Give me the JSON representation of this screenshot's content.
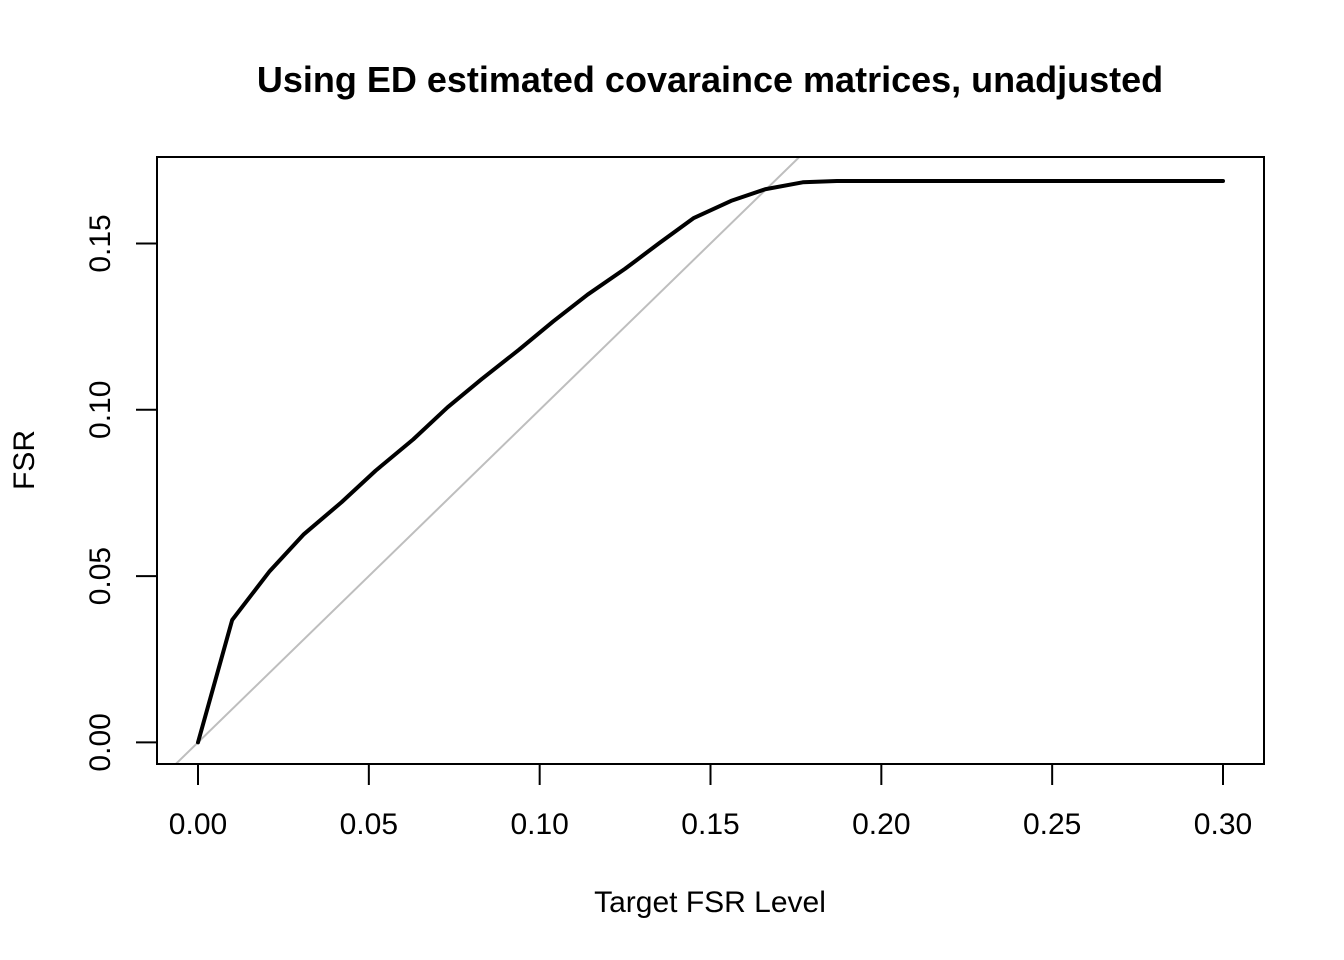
{
  "chart_data": {
    "type": "line",
    "title": "Using ED estimated covaraince matrices, unadjusted",
    "xlabel": "Target FSR Level",
    "ylabel": "FSR",
    "xlim": [
      -0.012,
      0.312
    ],
    "ylim": [
      -0.0065,
      0.176
    ],
    "x_ticks": [
      0.0,
      0.05,
      0.1,
      0.15,
      0.2,
      0.25,
      0.3
    ],
    "x_tick_labels": [
      "0.00",
      "0.05",
      "0.10",
      "0.15",
      "0.20",
      "0.25",
      "0.30"
    ],
    "y_ticks": [
      0.0,
      0.05,
      0.1,
      0.15
    ],
    "y_tick_labels": [
      "0.00",
      "0.05",
      "0.10",
      "0.15"
    ],
    "grid": false,
    "series": [
      {
        "color": "#000000",
        "x": [
          0.0,
          0.01,
          0.021,
          0.031,
          0.042,
          0.052,
          0.063,
          0.073,
          0.083,
          0.094,
          0.104,
          0.114,
          0.125,
          0.135,
          0.145,
          0.156,
          0.166,
          0.177,
          0.187,
          0.197,
          0.208,
          0.218,
          0.229,
          0.239,
          0.249,
          0.26,
          0.27,
          0.281,
          0.291,
          0.3
        ],
        "y": [
          0.0,
          0.0368,
          0.0515,
          0.0626,
          0.0722,
          0.0817,
          0.0911,
          0.1007,
          0.1092,
          0.1181,
          0.1266,
          0.1346,
          0.1424,
          0.1501,
          0.1576,
          0.1628,
          0.1663,
          0.1684,
          0.1688,
          0.1688,
          0.1688,
          0.1688,
          0.1688,
          0.1688,
          0.1688,
          0.1688,
          0.1688,
          0.1688,
          0.1688,
          0.1688
        ]
      }
    ],
    "reference_line": {
      "type": "identity",
      "intercept": 0,
      "slope": 1,
      "color": "#bebebe"
    }
  }
}
